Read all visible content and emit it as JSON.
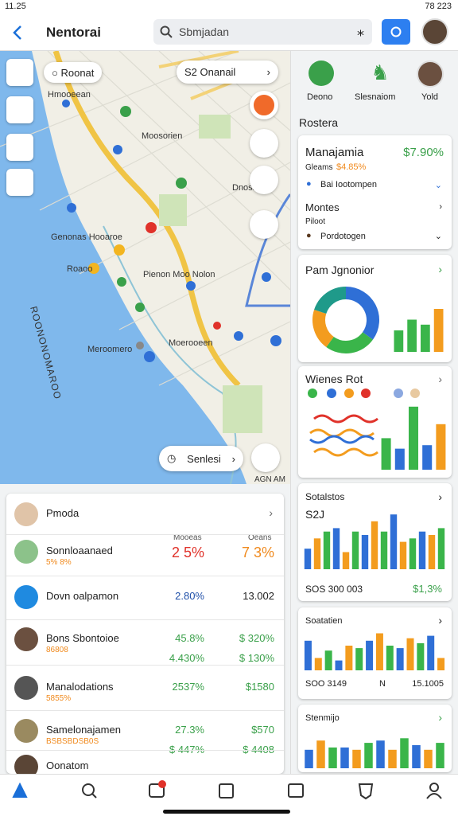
{
  "status_bar": {
    "time": "11.25",
    "battery": "78 223"
  },
  "header": {
    "title": "Nentorai",
    "search": "Sbmjadan"
  },
  "map": {
    "search_chip": "Roonat",
    "route_chip": "S2 Onanail",
    "action_chip": "Senlesi",
    "corner": "AGN AM",
    "labels": [
      "Hmooeean",
      "Moosorien",
      "Dnosnt",
      "Genonas Hooaroe",
      "Roaoo",
      "Pienon Moo Nolon",
      "Meroomero",
      "Moerooeen",
      "ROONONOMAROO"
    ]
  },
  "panel": {
    "icons": [
      "Deono",
      "Slesnaiom",
      "Yold"
    ],
    "section": "Rostera",
    "cards": [
      {
        "title": "Manajamia",
        "value": "$7.90%",
        "sub": "Gleams",
        "sub_value": "$4.85%",
        "item1": "Bai Iootompen",
        "item2": "Montes",
        "item2_sub": "Piloot",
        "item3": "Pordotogen"
      },
      {
        "title": "Pam Jgnonior",
        "donut": [
          35,
          25,
          20,
          20
        ],
        "bars": [
          30,
          45,
          38,
          60
        ]
      },
      {
        "title": "Wienes Rot",
        "bars": [
          45,
          30,
          90,
          35,
          65
        ]
      },
      {
        "title": "Sotalstos",
        "subtitle": "S2J",
        "bars": [
          30,
          45,
          55,
          60,
          25,
          55,
          50,
          70,
          55,
          80,
          40,
          45,
          55,
          50,
          60
        ],
        "footer": "SOS 300 003",
        "footer_value": "$1,3%"
      },
      {
        "title": "Soatatien",
        "bars": [
          60,
          25,
          40,
          20,
          50,
          45,
          60,
          75,
          50,
          45,
          65,
          55,
          70,
          25
        ],
        "footer": [
          "SOO 3149",
          "N",
          "15.1005"
        ]
      },
      {
        "title": "Stenmijo",
        "bars": [
          40,
          60,
          45,
          45,
          40,
          55,
          60,
          40,
          65,
          50,
          40,
          55
        ]
      }
    ]
  },
  "list": {
    "col_headers": [
      "Mooeas",
      "Oeans"
    ],
    "rows": [
      {
        "title": "Pmoda"
      },
      {
        "title": "Sonnloaanaed",
        "sub": "5% 8%",
        "v1": [
          "2 5%"
        ],
        "v2": [
          "7 3%"
        ]
      },
      {
        "title": "Dovn oalpamon",
        "v1": [
          "2.80%"
        ],
        "v2": [
          "13.002"
        ]
      },
      {
        "title": "Bons Sbontoioe",
        "sub": "86808",
        "v1": [
          "45.8%",
          "4.430%"
        ],
        "v2": [
          "$ 320%",
          "$ 130%"
        ]
      },
      {
        "title": "Manalodations",
        "sub": "5855%",
        "v1": [
          "2537%"
        ],
        "v2": [
          "$1580"
        ]
      },
      {
        "title": "Samelonajamen",
        "sub": "BSBSBDSB0S",
        "v1": [
          "27.3%",
          "$ 447%"
        ],
        "v2": [
          "$570",
          "$ 4408"
        ]
      },
      {
        "title": "Oonatom"
      }
    ]
  }
}
